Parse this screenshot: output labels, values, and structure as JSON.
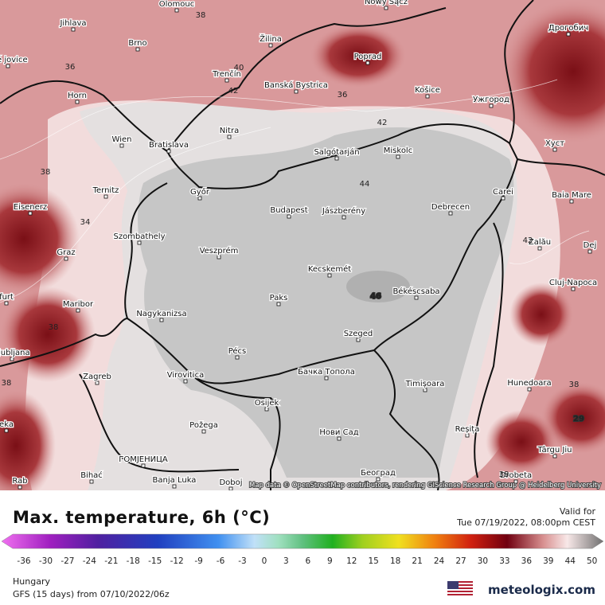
{
  "map": {
    "cities": [
      "Olomouc",
      "Nowy Sącz",
      "Jihlava",
      "Brno",
      "Žilina",
      "Poprad",
      "Дрогобич",
      "Trenčín",
      "Banská Bystrica",
      "Horn",
      "Košice",
      "Ужгород",
      "Wien",
      "Bratislava",
      "Nitra",
      "Salgótarján",
      "Miskolc",
      "Хуст",
      "Ternitz",
      "Győr",
      "Carei",
      "Baia Mare",
      "Eisenerz",
      "Budapest",
      "Jászberény",
      "Debrecen",
      "Szombathely",
      "Graz",
      "Veszprém",
      "Zalău",
      "Dej",
      "Kecskemét",
      "Cluj-Napoca",
      "Békéscsaba",
      "Paks",
      "Maribor",
      "Nagykanizsa",
      "Szeged",
      "Pécs",
      "Ljubljana",
      "Бачка Топола",
      "Zagreb",
      "Virovitica",
      "Timișoara",
      "Hunedoara",
      "Osijek",
      "Požega",
      "Reșița",
      "Нови Сад",
      "Târgu Jiu",
      "ГОМЈЕНИЦА",
      "Bihać",
      "Banja Luka",
      "Doboj",
      "Београд",
      "Drobeta",
      "ské jovice",
      "furt",
      "eka",
      "Rab"
    ],
    "contour_labels": [
      "38",
      "36",
      "40",
      "42",
      "36",
      "42",
      "38",
      "44",
      "34",
      "42",
      "46",
      "38",
      "38",
      "29",
      "38",
      "38"
    ],
    "attribution": "Map data © OpenStreetMap contributors, rendering GIScience Research Group @ Heidelberg University"
  },
  "legend": {
    "title": "Max. temperature, 6h (°C)",
    "valid_label": "Valid for",
    "valid_time": "Tue 07/19/2022, 08:00pm CEST",
    "ticks": [
      -36,
      -30,
      -27,
      -24,
      -21,
      -18,
      -15,
      -12,
      -9,
      -6,
      -3,
      0,
      3,
      6,
      9,
      12,
      15,
      18,
      21,
      24,
      27,
      30,
      33,
      36,
      39,
      44,
      50
    ]
  },
  "footer": {
    "region": "Hungary",
    "model": "GFS (15 days) from 07/10/2022/06z",
    "logo": "meteologix.com"
  }
}
